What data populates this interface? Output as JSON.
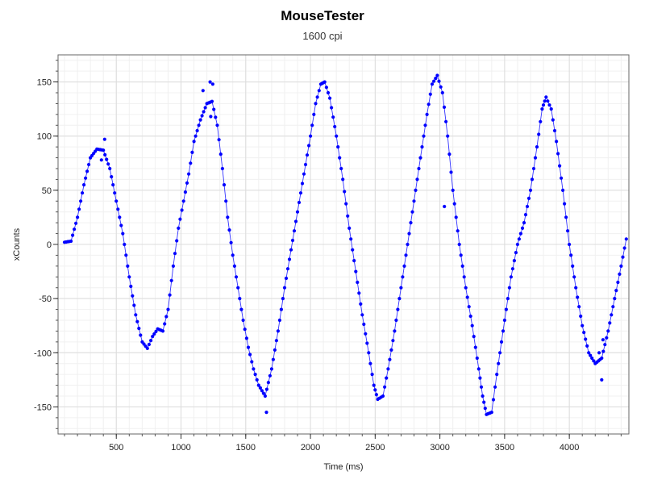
{
  "chart_data": {
    "type": "scatter",
    "title": "MouseTester",
    "subtitle": "1600 cpi",
    "xlabel": "Time (ms)",
    "ylabel": "xCounts",
    "xlim": [
      50,
      4460
    ],
    "ylim": [
      -175,
      175
    ],
    "xticks": [
      500,
      1000,
      1500,
      2000,
      2500,
      3000,
      3500,
      4000
    ],
    "yticks": [
      -150,
      -100,
      -50,
      0,
      50,
      100,
      150
    ],
    "grid": true,
    "colors": {
      "points": "#0000ff",
      "line": "#3333ff",
      "grid_major": "#dcdcdc",
      "grid_minor": "#f0f0f0",
      "axis": "#000000"
    },
    "series": [
      {
        "values": [
          [
            100,
            2
          ],
          [
            150,
            3
          ],
          [
            200,
            25
          ],
          [
            250,
            55
          ],
          [
            300,
            80
          ],
          [
            350,
            88
          ],
          [
            400,
            87
          ],
          [
            450,
            70
          ],
          [
            500,
            40
          ],
          [
            550,
            10
          ],
          [
            600,
            -30
          ],
          [
            650,
            -65
          ],
          [
            700,
            -90
          ],
          [
            740,
            -96
          ],
          [
            780,
            -85
          ],
          [
            820,
            -78
          ],
          [
            860,
            -80
          ],
          [
            900,
            -60
          ],
          [
            940,
            -20
          ],
          [
            980,
            15
          ],
          [
            1020,
            40
          ],
          [
            1060,
            65
          ],
          [
            1100,
            95
          ],
          [
            1150,
            115
          ],
          [
            1200,
            130
          ],
          [
            1240,
            132
          ],
          [
            1280,
            110
          ],
          [
            1320,
            70
          ],
          [
            1360,
            25
          ],
          [
            1400,
            -10
          ],
          [
            1440,
            -40
          ],
          [
            1480,
            -70
          ],
          [
            1520,
            -95
          ],
          [
            1560,
            -115
          ],
          [
            1600,
            -130
          ],
          [
            1650,
            -140
          ],
          [
            1700,
            -115
          ],
          [
            1750,
            -80
          ],
          [
            1800,
            -40
          ],
          [
            1850,
            -5
          ],
          [
            1900,
            30
          ],
          [
            1950,
            65
          ],
          [
            2000,
            100
          ],
          [
            2040,
            130
          ],
          [
            2080,
            148
          ],
          [
            2110,
            150
          ],
          [
            2150,
            135
          ],
          [
            2200,
            100
          ],
          [
            2250,
            60
          ],
          [
            2300,
            15
          ],
          [
            2350,
            -25
          ],
          [
            2400,
            -65
          ],
          [
            2450,
            -100
          ],
          [
            2490,
            -130
          ],
          [
            2520,
            -143
          ],
          [
            2560,
            -140
          ],
          [
            2600,
            -115
          ],
          [
            2650,
            -80
          ],
          [
            2700,
            -40
          ],
          [
            2750,
            0
          ],
          [
            2800,
            40
          ],
          [
            2850,
            80
          ],
          [
            2900,
            120
          ],
          [
            2940,
            148
          ],
          [
            2980,
            156
          ],
          [
            3020,
            140
          ],
          [
            3060,
            100
          ],
          [
            3100,
            50
          ],
          [
            3150,
            0
          ],
          [
            3200,
            -40
          ],
          [
            3250,
            -75
          ],
          [
            3300,
            -115
          ],
          [
            3330,
            -140
          ],
          [
            3360,
            -157
          ],
          [
            3400,
            -155
          ],
          [
            3440,
            -120
          ],
          [
            3500,
            -70
          ],
          [
            3550,
            -30
          ],
          [
            3600,
            0
          ],
          [
            3650,
            20
          ],
          [
            3700,
            50
          ],
          [
            3750,
            90
          ],
          [
            3790,
            125
          ],
          [
            3820,
            136
          ],
          [
            3860,
            125
          ],
          [
            3900,
            95
          ],
          [
            3950,
            50
          ],
          [
            4000,
            0
          ],
          [
            4050,
            -40
          ],
          [
            4100,
            -75
          ],
          [
            4150,
            -100
          ],
          [
            4200,
            -110
          ],
          [
            4250,
            -105
          ],
          [
            4300,
            -80
          ],
          [
            4350,
            -50
          ],
          [
            4400,
            -20
          ],
          [
            4440,
            5
          ]
        ],
        "outliers": [
          [
            385,
            78
          ],
          [
            410,
            97
          ],
          [
            1170,
            142
          ],
          [
            1225,
            150
          ],
          [
            1245,
            148
          ],
          [
            1230,
            118
          ],
          [
            1660,
            -155
          ],
          [
            3035,
            35
          ],
          [
            4230,
            -100
          ],
          [
            4250,
            -125
          ],
          [
            4260,
            -88
          ]
        ]
      }
    ]
  }
}
